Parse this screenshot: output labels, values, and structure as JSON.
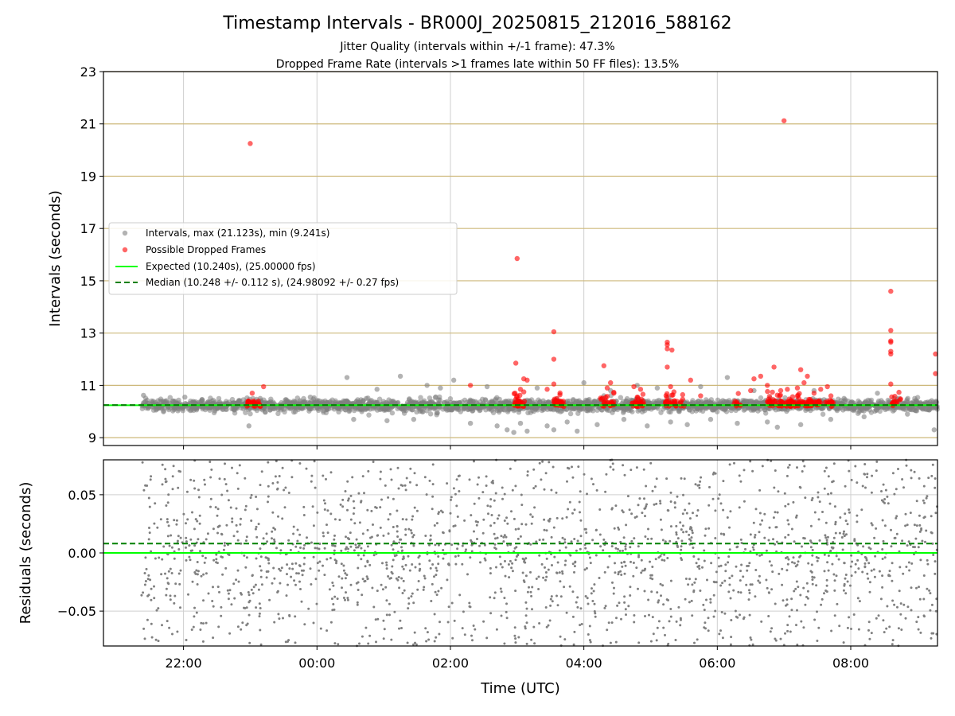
{
  "figure": {
    "title": "Timestamp Intervals - BR000J_20250815_212016_588162",
    "subtitle1": "Jitter Quality (intervals within +/-1 frame): 47.3%",
    "subtitle2": "Dropped Frame Rate (intervals >1 frames late within 50 FF files): 13.5%"
  },
  "colors": {
    "intervals": "#808080",
    "dropped": "#ff0000",
    "expected": "#00ff00",
    "median": "#008000",
    "hgrid_top": "#cdb87a",
    "grid": "#cfcfcf"
  },
  "chart_data": [
    {
      "type": "scatter",
      "xlabel": "",
      "ylabel": "Intervals (seconds)",
      "x_unit": "hours since 00:00 UTC (negative = previous day)",
      "xlim": [
        -3.2,
        9.3
      ],
      "ylim": [
        8.7,
        23
      ],
      "yticks": [
        "9",
        "11",
        "13",
        "15",
        "17",
        "19",
        "21",
        "23"
      ],
      "grid": true,
      "legend_position": "center-left",
      "legend": [
        {
          "label": "Intervals, max (21.123s), min (9.241s)",
          "marker": "grey-dot"
        },
        {
          "label": "Possible Dropped Frames",
          "marker": "red-dot"
        },
        {
          "label": "Expected (10.240s), (25.00000 fps)",
          "marker": "green-line"
        },
        {
          "label": "Median (10.248 +/- 0.112 s), (24.98092 +/- 0.27 fps)",
          "marker": "dark-green-dashed"
        }
      ],
      "expected": 10.24,
      "median": 10.248,
      "median_std": 0.112,
      "max_interval": 21.123,
      "min_interval": 9.241,
      "intervals_band": {
        "x_start": -2.63,
        "x_end": 9.3,
        "center": 10.24,
        "spread": 0.1
      },
      "intervals_outliers": [
        {
          "x": -2.6,
          "y": 10.62
        },
        {
          "x": -1.98,
          "y": 10.55
        },
        {
          "x": -1.02,
          "y": 9.45
        },
        {
          "x": -0.85,
          "y": 10.5
        },
        {
          "x": -0.1,
          "y": 10.55
        },
        {
          "x": 0.45,
          "y": 11.3
        },
        {
          "x": 0.55,
          "y": 9.7
        },
        {
          "x": 0.9,
          "y": 10.85
        },
        {
          "x": 1.05,
          "y": 9.65
        },
        {
          "x": 1.25,
          "y": 11.35
        },
        {
          "x": 1.45,
          "y": 9.7
        },
        {
          "x": 1.65,
          "y": 11.0
        },
        {
          "x": 1.85,
          "y": 10.9
        },
        {
          "x": 2.05,
          "y": 11.2
        },
        {
          "x": 2.3,
          "y": 9.55
        },
        {
          "x": 2.55,
          "y": 10.95
        },
        {
          "x": 2.7,
          "y": 9.45
        },
        {
          "x": 2.85,
          "y": 9.3
        },
        {
          "x": 2.95,
          "y": 9.2
        },
        {
          "x": 3.05,
          "y": 9.55
        },
        {
          "x": 3.15,
          "y": 9.25
        },
        {
          "x": 3.3,
          "y": 10.9
        },
        {
          "x": 3.45,
          "y": 9.45
        },
        {
          "x": 3.55,
          "y": 9.3
        },
        {
          "x": 3.75,
          "y": 9.6
        },
        {
          "x": 3.9,
          "y": 9.25
        },
        {
          "x": 4.0,
          "y": 11.1
        },
        {
          "x": 4.2,
          "y": 9.5
        },
        {
          "x": 4.4,
          "y": 10.8
        },
        {
          "x": 4.6,
          "y": 9.7
        },
        {
          "x": 4.8,
          "y": 11.0
        },
        {
          "x": 4.95,
          "y": 9.45
        },
        {
          "x": 5.1,
          "y": 10.9
        },
        {
          "x": 5.3,
          "y": 9.6
        },
        {
          "x": 5.55,
          "y": 9.5
        },
        {
          "x": 5.75,
          "y": 10.95
        },
        {
          "x": 5.9,
          "y": 9.7
        },
        {
          "x": 6.15,
          "y": 11.3
        },
        {
          "x": 6.3,
          "y": 9.55
        },
        {
          "x": 6.55,
          "y": 10.8
        },
        {
          "x": 6.75,
          "y": 9.6
        },
        {
          "x": 6.9,
          "y": 9.4
        },
        {
          "x": 7.25,
          "y": 9.5
        },
        {
          "x": 7.45,
          "y": 10.8
        },
        {
          "x": 7.7,
          "y": 9.7
        },
        {
          "x": 7.9,
          "y": 10.5
        },
        {
          "x": 8.2,
          "y": 9.8
        },
        {
          "x": 8.4,
          "y": 10.7
        },
        {
          "x": 8.85,
          "y": 9.9
        },
        {
          "x": 9.25,
          "y": 9.3
        }
      ],
      "dropped_points": [
        {
          "x": -1.0,
          "y": 20.25
        },
        {
          "x": 3.0,
          "y": 15.85
        },
        {
          "x": 7.0,
          "y": 21.12
        },
        {
          "x": 8.6,
          "y": 14.6
        },
        {
          "x": 8.6,
          "y": 13.1
        },
        {
          "x": 8.6,
          "y": 12.7
        },
        {
          "x": 8.6,
          "y": 12.65
        },
        {
          "x": 8.6,
          "y": 12.3
        },
        {
          "x": 8.6,
          "y": 12.2
        },
        {
          "x": 8.6,
          "y": 11.05
        },
        {
          "x": 9.27,
          "y": 12.2
        },
        {
          "x": 9.27,
          "y": 11.45
        },
        {
          "x": 3.55,
          "y": 13.05
        },
        {
          "x": 3.55,
          "y": 12.0
        },
        {
          "x": 3.55,
          "y": 11.05
        },
        {
          "x": 2.98,
          "y": 11.85
        },
        {
          "x": 3.1,
          "y": 11.25
        },
        {
          "x": 3.15,
          "y": 11.2
        },
        {
          "x": 3.1,
          "y": 10.75
        },
        {
          "x": 3.0,
          "y": 10.6
        },
        {
          "x": 3.05,
          "y": 10.85
        },
        {
          "x": 4.3,
          "y": 11.75
        },
        {
          "x": 4.4,
          "y": 11.1
        },
        {
          "x": 4.35,
          "y": 10.9
        },
        {
          "x": 4.45,
          "y": 10.7
        },
        {
          "x": 4.75,
          "y": 10.95
        },
        {
          "x": 4.85,
          "y": 10.85
        },
        {
          "x": 4.8,
          "y": 10.55
        },
        {
          "x": 5.25,
          "y": 12.65
        },
        {
          "x": 5.25,
          "y": 12.55
        },
        {
          "x": 5.25,
          "y": 12.4
        },
        {
          "x": 5.32,
          "y": 12.35
        },
        {
          "x": 5.25,
          "y": 11.7
        },
        {
          "x": 5.3,
          "y": 10.95
        },
        {
          "x": 5.35,
          "y": 10.75
        },
        {
          "x": 5.6,
          "y": 11.2
        },
        {
          "x": 6.5,
          "y": 10.8
        },
        {
          "x": 6.65,
          "y": 11.35
        },
        {
          "x": 6.55,
          "y": 11.25
        },
        {
          "x": 6.85,
          "y": 11.7
        },
        {
          "x": 6.75,
          "y": 11.0
        },
        {
          "x": 6.95,
          "y": 10.8
        },
        {
          "x": 7.05,
          "y": 10.85
        },
        {
          "x": 7.25,
          "y": 11.6
        },
        {
          "x": 7.35,
          "y": 11.35
        },
        {
          "x": 7.3,
          "y": 11.1
        },
        {
          "x": 7.2,
          "y": 10.9
        },
        {
          "x": 7.55,
          "y": 10.85
        },
        {
          "x": 7.65,
          "y": 10.95
        },
        {
          "x": -0.8,
          "y": 10.95
        },
        {
          "x": 2.3,
          "y": 11.0
        },
        {
          "x": 3.45,
          "y": 10.85
        },
        {
          "x": 5.75,
          "y": 10.6
        },
        {
          "x": 7.45,
          "y": 10.7
        }
      ],
      "dropped_clusters": [
        {
          "x_start": -1.05,
          "x_end": -0.82,
          "count": 28
        },
        {
          "x_start": 2.95,
          "x_end": 3.12,
          "count": 30
        },
        {
          "x_start": 3.55,
          "x_end": 3.75,
          "count": 30
        },
        {
          "x_start": 4.25,
          "x_end": 4.45,
          "count": 24
        },
        {
          "x_start": 4.72,
          "x_end": 4.9,
          "count": 26
        },
        {
          "x_start": 5.22,
          "x_end": 5.5,
          "count": 34
        },
        {
          "x_start": 6.25,
          "x_end": 6.35,
          "count": 10
        },
        {
          "x_start": 6.75,
          "x_end": 7.55,
          "count": 110
        },
        {
          "x_start": 7.6,
          "x_end": 7.75,
          "count": 16
        },
        {
          "x_start": 8.6,
          "x_end": 8.75,
          "count": 16
        }
      ]
    },
    {
      "type": "scatter",
      "xlabel": "Time (UTC)",
      "ylabel": "Residuals (seconds)",
      "x_unit": "hours since 00:00 UTC (negative = previous day)",
      "xlim": [
        -3.2,
        9.3
      ],
      "ylim": [
        -0.08,
        0.08
      ],
      "yticks": [
        "0.05",
        "0.00",
        "−0.05"
      ],
      "ytick_values": [
        0.05,
        0.0,
        -0.05
      ],
      "xticks": [
        "22:00",
        "00:00",
        "02:00",
        "04:00",
        "06:00",
        "08:00"
      ],
      "xtick_values": [
        -2,
        0,
        2,
        4,
        6,
        8
      ],
      "grid": true,
      "expected_line": 0.0,
      "median_line": 0.008,
      "residuals_band": {
        "x_start": -2.63,
        "x_end": 9.3,
        "center": 0.0,
        "spread": 0.045,
        "point_count": 2000
      }
    }
  ]
}
